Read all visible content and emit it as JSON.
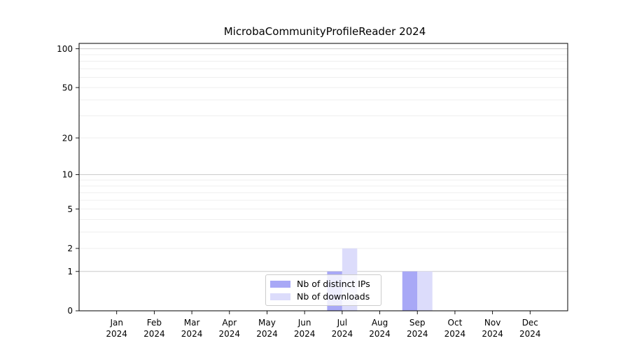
{
  "title": "MicrobaCommunityProfileReader 2024",
  "colors": {
    "background": "#ffffff",
    "axis": "#000000",
    "grid_major": "#cccccc",
    "grid_minor": "#efefef",
    "ips_bar": "#a8a8f6",
    "downloads_bar": "#dcdcfb",
    "legend_border": "#cccccc"
  },
  "legend": {
    "items": [
      {
        "label": "Nb of distinct IPs",
        "color": "#a8a8f6"
      },
      {
        "label": "Nb of downloads",
        "color": "#dcdcfb"
      }
    ]
  },
  "chart_data": {
    "type": "bar",
    "title": "MicrobaCommunityProfileReader 2024",
    "categories": [
      "Jan",
      "Feb",
      "Mar",
      "Apr",
      "May",
      "Jun",
      "Jul",
      "Aug",
      "Sep",
      "Oct",
      "Nov",
      "Dec"
    ],
    "year_label": "2024",
    "series": [
      {
        "name": "Nb of distinct IPs",
        "color": "#a8a8f6",
        "values": [
          0,
          0,
          0,
          0,
          0,
          0,
          1,
          0,
          1,
          0,
          0,
          0
        ]
      },
      {
        "name": "Nb of downloads",
        "color": "#dcdcfb",
        "values": [
          0,
          0,
          0,
          0,
          0,
          0,
          2,
          0,
          1,
          0,
          0,
          0
        ]
      }
    ],
    "xlabel": "",
    "ylabel": "",
    "yscale": "log1p",
    "ylim": [
      0,
      110
    ],
    "yticks": [
      0,
      1,
      2,
      5,
      10,
      20,
      50,
      100
    ],
    "yticks_major_gridlines": [
      1,
      10,
      100
    ],
    "yticks_minor": [
      3,
      4,
      6,
      7,
      8,
      9,
      30,
      40,
      60,
      70,
      80,
      90
    ],
    "grid": true,
    "legend_position": "lower-center"
  }
}
